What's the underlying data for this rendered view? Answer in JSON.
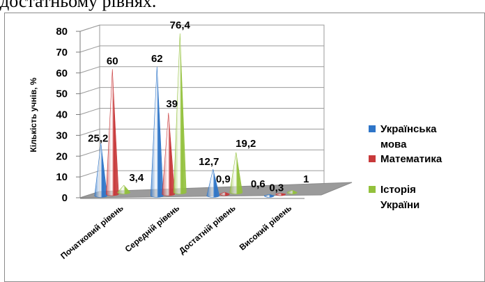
{
  "caption_fragment": "достатньому рівнях.",
  "chart_data": {
    "type": "bar",
    "style": "3d-cone",
    "categories": [
      "Початковий рівень",
      "Середній рівень",
      "Достатній рівень",
      "Високий рівень"
    ],
    "series": [
      {
        "name": "Українська мова",
        "values": [
          25.2,
          62,
          12.7,
          0.6
        ],
        "labels": [
          "25,2",
          "62",
          "12,7",
          "0,6"
        ],
        "color": "#2e75c8"
      },
      {
        "name": "Математика",
        "values": [
          60,
          39,
          0.9,
          0.3
        ],
        "labels": [
          "60",
          "39",
          "0,9",
          "0,3"
        ],
        "color": "#c8393a"
      },
      {
        "name": "Історія України",
        "values": [
          3.4,
          76.4,
          19.2,
          1
        ],
        "labels": [
          "3,4",
          "76,4",
          "19,2",
          "1"
        ],
        "color": "#93c13c"
      }
    ],
    "ylabel": "Кількість учнів, %",
    "xlabel": "",
    "ylim": [
      0,
      80
    ],
    "yticks": [
      0,
      10,
      20,
      30,
      40,
      50,
      60,
      70,
      80
    ],
    "grid": true,
    "legend": "right"
  }
}
